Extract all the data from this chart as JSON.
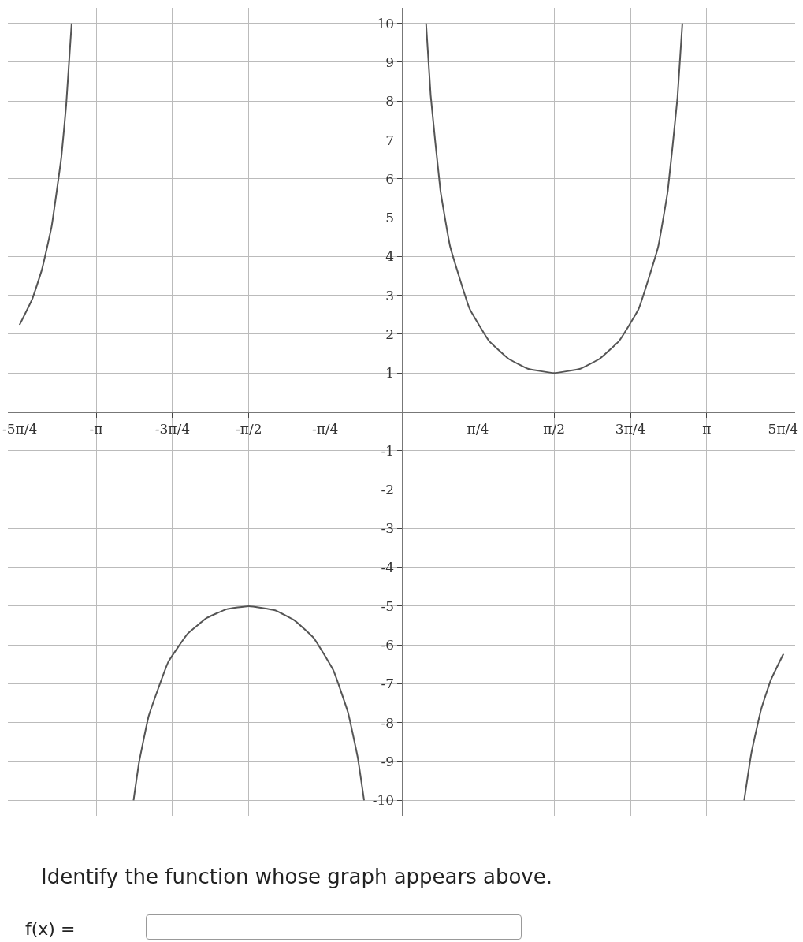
{
  "chart_data": {
    "type": "line",
    "x": [
      -3.93,
      -3.8,
      -3.7,
      -3.6,
      -3.5,
      -3.45,
      -3.394,
      null,
      -2.757,
      -2.7,
      -2.6,
      -2.4,
      -2.2,
      -2.0,
      -1.8,
      -1.571,
      -1.3,
      -1.1,
      -0.9,
      -0.7,
      -0.55,
      -0.45,
      -0.385,
      null,
      0.253,
      0.3,
      0.4,
      0.5,
      0.7,
      0.9,
      1.1,
      1.3,
      1.571,
      1.84,
      2.04,
      2.24,
      2.44,
      2.64,
      2.74,
      2.84,
      2.89,
      null,
      3.526,
      3.6,
      3.7,
      3.8,
      3.93
    ],
    "series": [
      {
        "color": "#555555",
        "values": [
          2.24,
          2.9,
          3.66,
          4.77,
          6.55,
          7.9,
          10,
          null,
          -10,
          -9.02,
          -7.82,
          -6.44,
          -5.71,
          -5.3,
          -5.08,
          -5,
          -5.11,
          -5.37,
          -5.83,
          -6.66,
          -7.74,
          -8.9,
          -10,
          null,
          10,
          8.15,
          5.71,
          4.26,
          2.66,
          1.83,
          1.37,
          1.11,
          1,
          1.11,
          1.37,
          1.83,
          2.65,
          4.24,
          5.69,
          8.1,
          10,
          null,
          -10,
          -8.78,
          -7.66,
          -6.9,
          -6.23
        ]
      }
    ],
    "xlim": [
      -4.05,
      4.05
    ],
    "ylim": [
      -10.4,
      10.4
    ],
    "xticks": [
      {
        "value": -3.927,
        "label": "-5π/4"
      },
      {
        "value": -3.1416,
        "label": "-π"
      },
      {
        "value": -2.3562,
        "label": "-3π/4"
      },
      {
        "value": -1.5708,
        "label": "-π/2"
      },
      {
        "value": -0.7854,
        "label": "-π/4"
      },
      {
        "value": 0.7854,
        "label": "π/4"
      },
      {
        "value": 1.5708,
        "label": "π/2"
      },
      {
        "value": 2.3562,
        "label": "3π/4"
      },
      {
        "value": 3.1416,
        "label": "π"
      },
      {
        "value": 3.927,
        "label": "5π/4"
      }
    ],
    "yticks": [
      -10,
      -9,
      -8,
      -7,
      -6,
      -5,
      -4,
      -3,
      -2,
      -1,
      1,
      2,
      3,
      4,
      5,
      6,
      7,
      8,
      9,
      10
    ],
    "grid": true,
    "legend": false,
    "marker": "none",
    "line_style": "solid",
    "annotations": [
      "Identify the function whose graph appears above.",
      "f(x) ="
    ]
  }
}
